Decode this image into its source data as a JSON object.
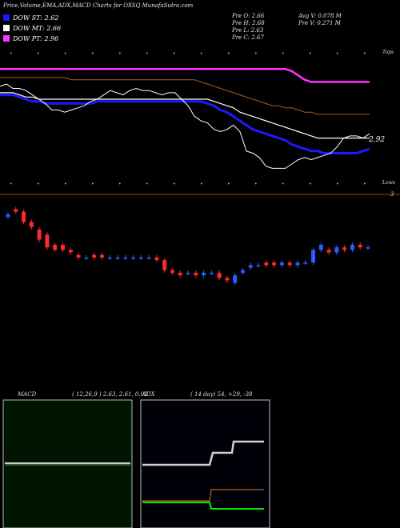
{
  "title": "Price,Volume,EMA,ADX,MACD Charts for OXSQ MunafaSutra.com",
  "legend": [
    {
      "label": "DOW ST: 2.62",
      "color": "#1a1aff"
    },
    {
      "label": "DOW MT: 2.66",
      "color": "#ffffff"
    },
    {
      "label": "DOW PT: 2.96",
      "color": "#ff33ff"
    }
  ],
  "stats": {
    "col1": [
      "Pre O: 2.66",
      "Pre H: 2.68",
      "Pre L: 2.63",
      "Pre C: 2.67"
    ],
    "col2": [
      "Avg V: 0.078 M",
      "Pre V: 0.271 M"
    ]
  },
  "top_label": "Tops",
  "bottom_label": "Lows",
  "price_label": "2.92",
  "volume_label": "3",
  "macd_panel": {
    "label": "MACD",
    "params": "( 12,26,9 ) 2.63, 2.61, 0.02"
  },
  "adx_panel": {
    "label": "ADX",
    "params": "( 14 day) 54, +29, -38"
  },
  "chart_data": {
    "type": "line",
    "sessions": 58,
    "series": [
      {
        "name": "DOW ST",
        "color": "#1a1aff",
        "values": [
          3.02,
          3.02,
          3.02,
          3.01,
          3.0,
          2.99,
          2.99,
          2.98,
          2.98,
          2.98,
          2.98,
          2.98,
          2.98,
          2.98,
          2.98,
          2.99,
          2.99,
          2.99,
          2.99,
          2.99,
          2.99,
          2.99,
          2.99,
          2.99,
          2.99,
          2.99,
          2.99,
          2.99,
          2.99,
          2.99,
          2.99,
          2.99,
          2.98,
          2.97,
          2.95,
          2.94,
          2.92,
          2.9,
          2.88,
          2.86,
          2.85,
          2.84,
          2.83,
          2.82,
          2.81,
          2.79,
          2.78,
          2.77,
          2.76,
          2.76,
          2.75,
          2.75,
          2.75,
          2.75,
          2.75,
          2.75,
          2.76,
          2.77
        ]
      },
      {
        "name": "DOW MT",
        "color": "#ffffff",
        "values": [
          3.03,
          3.03,
          3.03,
          3.02,
          3.01,
          3.01,
          3.0,
          3.0,
          3.0,
          3.0,
          3.0,
          3.0,
          3.0,
          3.0,
          3.0,
          3.0,
          3.0,
          3.0,
          3.0,
          3.0,
          3.0,
          3.0,
          3.0,
          3.0,
          3.0,
          3.0,
          3.0,
          3.0,
          3.0,
          3.0,
          3.0,
          3.0,
          3.0,
          2.99,
          2.98,
          2.97,
          2.96,
          2.94,
          2.93,
          2.92,
          2.91,
          2.9,
          2.89,
          2.88,
          2.87,
          2.86,
          2.85,
          2.84,
          2.83,
          2.82,
          2.82,
          2.82,
          2.82,
          2.82,
          2.82,
          2.82,
          2.82,
          2.82
        ]
      },
      {
        "name": "DOW PT",
        "color": "#ff33ff",
        "values": [
          3.14,
          3.14,
          3.14,
          3.14,
          3.14,
          3.14,
          3.14,
          3.14,
          3.14,
          3.14,
          3.14,
          3.14,
          3.14,
          3.14,
          3.14,
          3.14,
          3.14,
          3.14,
          3.14,
          3.14,
          3.14,
          3.14,
          3.14,
          3.14,
          3.14,
          3.14,
          3.14,
          3.14,
          3.14,
          3.14,
          3.14,
          3.14,
          3.14,
          3.14,
          3.14,
          3.14,
          3.14,
          3.14,
          3.14,
          3.14,
          3.14,
          3.14,
          3.14,
          3.14,
          3.14,
          3.13,
          3.11,
          3.09,
          3.08,
          3.08,
          3.08,
          3.08,
          3.08,
          3.08,
          3.08,
          3.08,
          3.08,
          3.08
        ]
      },
      {
        "name": "EMA 100",
        "color": "#b05a1e",
        "values": [
          3.1,
          3.1,
          3.1,
          3.1,
          3.1,
          3.1,
          3.1,
          3.1,
          3.1,
          3.1,
          3.1,
          3.09,
          3.09,
          3.09,
          3.09,
          3.09,
          3.09,
          3.09,
          3.09,
          3.09,
          3.09,
          3.09,
          3.09,
          3.09,
          3.09,
          3.09,
          3.09,
          3.09,
          3.09,
          3.09,
          3.09,
          3.08,
          3.07,
          3.06,
          3.05,
          3.04,
          3.03,
          3.02,
          3.01,
          3.0,
          2.99,
          2.98,
          2.97,
          2.97,
          2.96,
          2.96,
          2.95,
          2.94,
          2.94,
          2.93,
          2.93,
          2.93,
          2.93,
          2.93,
          2.93,
          2.93,
          2.93,
          2.93
        ]
      },
      {
        "name": "Close",
        "color": "#ffffff",
        "values": [
          3.06,
          3.07,
          3.05,
          3.05,
          3.04,
          3.02,
          3.0,
          2.98,
          2.95,
          2.95,
          2.94,
          2.95,
          2.96,
          2.97,
          2.99,
          3.0,
          3.02,
          3.04,
          3.03,
          3.02,
          3.04,
          3.05,
          3.04,
          3.04,
          3.03,
          3.02,
          3.03,
          3.03,
          3.0,
          2.97,
          2.92,
          2.9,
          2.89,
          2.86,
          2.85,
          2.86,
          2.88,
          2.85,
          2.76,
          2.75,
          2.73,
          2.69,
          2.68,
          2.68,
          2.68,
          2.7,
          2.72,
          2.73,
          2.72,
          2.73,
          2.74,
          2.75,
          2.78,
          2.82,
          2.83,
          2.83,
          2.82,
          2.84
        ]
      }
    ],
    "candles": [
      {
        "o": 3.06,
        "c": 3.07
      },
      {
        "o": 3.09,
        "c": 3.08
      },
      {
        "o": 3.08,
        "c": 3.04
      },
      {
        "o": 3.04,
        "c": 3.02
      },
      {
        "o": 3.01,
        "c": 2.97
      },
      {
        "o": 2.99,
        "c": 2.94
      },
      {
        "o": 2.95,
        "c": 2.93
      },
      {
        "o": 2.95,
        "c": 2.93
      },
      {
        "o": 2.93,
        "c": 2.92
      },
      {
        "o": 2.91,
        "c": 2.9
      },
      {
        "o": 2.9,
        "c": 2.9
      },
      {
        "o": 2.91,
        "c": 2.9
      },
      {
        "o": 2.91,
        "c": 2.9
      },
      {
        "o": 2.9,
        "c": 2.9
      },
      {
        "o": 2.9,
        "c": 2.9
      },
      {
        "o": 2.9,
        "c": 2.9
      },
      {
        "o": 2.9,
        "c": 2.9
      },
      {
        "o": 2.9,
        "c": 2.9
      },
      {
        "o": 2.9,
        "c": 2.9
      },
      {
        "o": 2.9,
        "c": 2.89
      },
      {
        "o": 2.89,
        "c": 2.85
      },
      {
        "o": 2.85,
        "c": 2.84
      },
      {
        "o": 2.84,
        "c": 2.83
      },
      {
        "o": 2.84,
        "c": 2.84
      },
      {
        "o": 2.84,
        "c": 2.83
      },
      {
        "o": 2.83,
        "c": 2.84
      },
      {
        "o": 2.84,
        "c": 2.84
      },
      {
        "o": 2.84,
        "c": 2.82
      },
      {
        "o": 2.82,
        "c": 2.81
      },
      {
        "o": 2.8,
        "c": 2.83
      },
      {
        "o": 2.84,
        "c": 2.85
      },
      {
        "o": 2.86,
        "c": 2.87
      },
      {
        "o": 2.87,
        "c": 2.87
      },
      {
        "o": 2.88,
        "c": 2.87
      },
      {
        "o": 2.88,
        "c": 2.87
      },
      {
        "o": 2.87,
        "c": 2.88
      },
      {
        "o": 2.88,
        "c": 2.87
      },
      {
        "o": 2.87,
        "c": 2.88
      },
      {
        "o": 2.88,
        "c": 2.88
      },
      {
        "o": 2.88,
        "c": 2.93
      },
      {
        "o": 2.93,
        "c": 2.95
      },
      {
        "o": 2.93,
        "c": 2.92
      },
      {
        "o": 2.92,
        "c": 2.94
      },
      {
        "o": 2.94,
        "c": 2.93
      },
      {
        "o": 2.93,
        "c": 2.95
      },
      {
        "o": 2.95,
        "c": 2.94
      },
      {
        "o": 2.94,
        "c": 2.94
      }
    ],
    "candle_colors": {
      "up": "#2b5cff",
      "down": "#ff2a2a"
    },
    "macd": {
      "macd": 2.63,
      "signal": 2.61,
      "histogram": 0.02
    },
    "adx": {
      "adx": 54,
      "plus_di": 29,
      "minus_di": 38
    },
    "adx_series": {
      "adx": [
        0.55,
        0.55,
        0.55,
        0.55,
        0.55,
        0.55,
        0.55,
        0.55,
        0.55,
        0.55,
        0.55,
        0.55,
        0.55,
        0.55,
        0.55,
        0.55,
        0.55,
        0.55,
        0.55,
        0.55,
        0.55,
        0.55,
        0.55,
        0.55,
        0.55,
        0.55,
        0.55,
        0.55,
        0.55,
        0.55,
        0.55,
        0.55,
        0.55,
        0.55,
        0.55,
        0.55,
        0.55,
        0.55,
        0.55,
        0.55,
        0.55,
        0.55,
        0.55,
        0.55,
        0.55,
        0.55,
        0.55,
        0.55,
        0.55,
        0.55,
        0.55,
        0.55,
        0.55,
        0.55,
        0.55,
        0.55,
        0.55,
        0.55
      ],
      "plus": [
        0.18,
        0.18,
        0.18,
        0.18,
        0.18,
        0.18,
        0.18,
        0.18,
        0.18,
        0.18,
        0.18,
        0.18,
        0.18,
        0.18,
        0.18,
        0.18,
        0.18,
        0.18,
        0.18,
        0.18,
        0.18,
        0.18,
        0.18,
        0.18,
        0.18,
        0.18,
        0.18,
        0.18,
        0.18,
        0.18,
        0.18,
        0.18,
        0.18,
        0.18,
        0.18,
        0.18,
        0.18,
        0.18,
        0.18,
        0.18,
        0.18,
        0.18,
        0.18,
        0.18,
        0.18,
        0.18,
        0.18,
        0.18,
        0.18,
        0.18,
        0.18,
        0.18,
        0.18,
        0.18,
        0.18,
        0.18,
        0.18,
        0.18
      ],
      "minus": [
        0.18,
        0.18,
        0.18,
        0.18,
        0.18,
        0.18,
        0.18,
        0.18,
        0.18,
        0.18,
        0.18,
        0.18,
        0.18,
        0.18,
        0.18,
        0.18,
        0.18,
        0.18,
        0.18,
        0.18,
        0.18,
        0.18,
        0.18,
        0.18,
        0.18,
        0.18,
        0.18,
        0.18,
        0.18,
        0.18,
        0.18,
        0.18,
        0.18,
        0.18,
        0.18,
        0.18,
        0.18,
        0.18,
        0.18,
        0.18,
        0.18,
        0.18,
        0.18,
        0.18,
        0.18,
        0.18,
        0.18,
        0.18,
        0.18,
        0.18,
        0.18,
        0.18,
        0.18,
        0.18,
        0.18,
        0.18,
        0.18,
        0.18
      ]
    }
  }
}
